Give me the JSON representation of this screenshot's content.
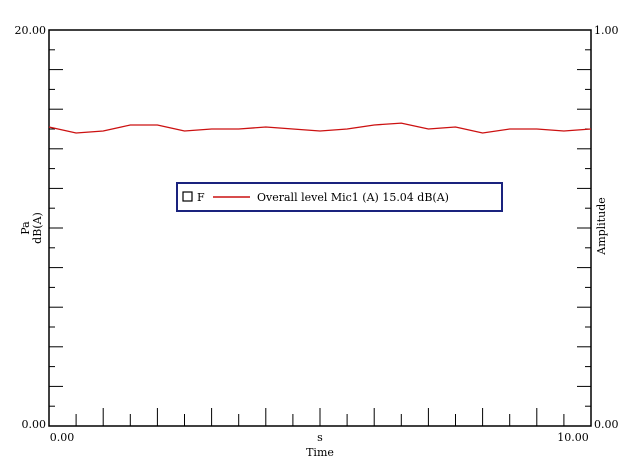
{
  "chart_data": {
    "type": "line",
    "x_unit": "s",
    "xlabel": "Time",
    "xlim": [
      0,
      10
    ],
    "x_tick_labels": [
      "0.00",
      "10.00"
    ],
    "ylabel_left": [
      "Pa",
      "dB(A)"
    ],
    "ylim_left": [
      0,
      20
    ],
    "y_left_tick_labels": [
      "0.00",
      "20.00"
    ],
    "ylabel_right": "Amplitude",
    "ylim_right": [
      0,
      1
    ],
    "y_right_tick_labels": [
      "0.00",
      "1.00"
    ],
    "grid": false,
    "legend_position": "center",
    "legend_marker": "F",
    "legend_label": "Overall level Mic1 (A) 15.04 dB(A)",
    "series": [
      {
        "name": "Overall level Mic1 (A) 15.04 dB(A)",
        "color": "#cc1111",
        "x": [
          0,
          0.5,
          1.0,
          1.5,
          2.0,
          2.5,
          3.0,
          3.5,
          4.0,
          4.5,
          5.0,
          5.5,
          6.0,
          6.5,
          7.0,
          7.5,
          8.0,
          8.5,
          9.0,
          9.5,
          10.0
        ],
        "y": [
          15.1,
          14.8,
          14.9,
          15.2,
          15.2,
          14.9,
          15.0,
          15.0,
          15.1,
          15.0,
          14.9,
          15.0,
          15.2,
          15.3,
          15.0,
          15.1,
          14.8,
          15.0,
          15.0,
          14.9,
          15.0
        ]
      }
    ]
  }
}
